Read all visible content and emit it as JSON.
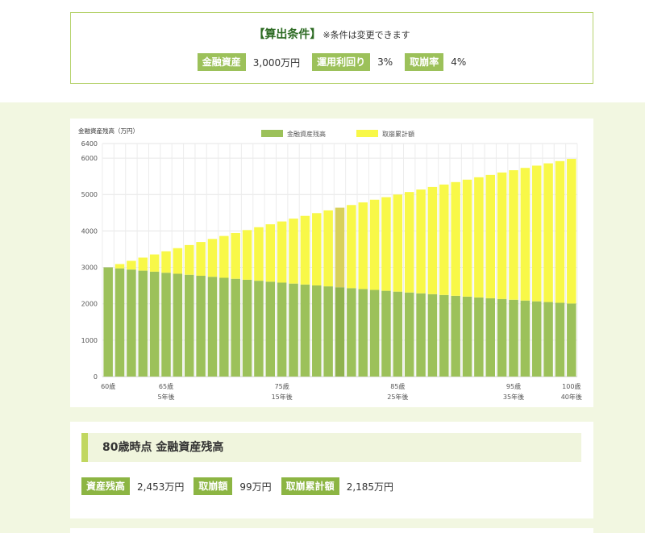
{
  "conditions": {
    "title": "【算出条件】",
    "note": "※条件は変更できます",
    "asset_label": "金融資産",
    "asset_value": "3,000万円",
    "return_label": "運用利回り",
    "return_value": "3%",
    "withdraw_label": "取崩率",
    "withdraw_value": "4%"
  },
  "chart_data": {
    "type": "bar",
    "stacked": true,
    "ylabel": "金融資産残高（万円）",
    "ylim": [
      0,
      6400
    ],
    "yticks": [
      0,
      1000,
      2000,
      3000,
      4000,
      5000,
      6000,
      6400
    ],
    "legend_position": "top-center",
    "grid": true,
    "highlight_index": 20,
    "x_tick_labels": [
      {
        "index": 0,
        "line1": "60歳",
        "line2": ""
      },
      {
        "index": 5,
        "line1": "65歳",
        "line2": "5年後"
      },
      {
        "index": 15,
        "line1": "75歳",
        "line2": "15年後"
      },
      {
        "index": 25,
        "line1": "85歳",
        "line2": "25年後"
      },
      {
        "index": 35,
        "line1": "95歳",
        "line2": "35年後"
      },
      {
        "index": 40,
        "line1": "100歳",
        "line2": "40年後"
      }
    ],
    "series": [
      {
        "name": "金融資産残高",
        "color": "#9cc15a",
        "highlight_color": "#8fb24e",
        "values": [
          3000,
          2970,
          2940,
          2910,
          2881,
          2852,
          2824,
          2796,
          2768,
          2740,
          2713,
          2686,
          2659,
          2632,
          2606,
          2580,
          2554,
          2528,
          2503,
          2478,
          2453,
          2428,
          2404,
          2380,
          2356,
          2333,
          2309,
          2286,
          2263,
          2241,
          2218,
          2196,
          2174,
          2152,
          2131,
          2109,
          2088,
          2067,
          2047,
          2026,
          2006
        ]
      },
      {
        "name": "取崩累計額",
        "color": "#f8f848",
        "highlight_color": "#d8d05a",
        "values": [
          0,
          120,
          239,
          357,
          473,
          589,
          703,
          816,
          928,
          1039,
          1148,
          1257,
          1364,
          1470,
          1576,
          1680,
          1783,
          1885,
          1986,
          2086,
          2185,
          2283,
          2380,
          2476,
          2571,
          2666,
          2759,
          2851,
          2943,
          3033,
          3123,
          3212,
          3300,
          3387,
          3473,
          3558,
          3643,
          3726,
          3809,
          3891,
          3972
        ]
      }
    ]
  },
  "result": {
    "title": "80歳時点 金融資産残高",
    "balance_label": "資産残高",
    "balance_value": "2,453万円",
    "withdraw_label": "取崩額",
    "withdraw_value": "99万円",
    "cumulative_label": "取崩累計額",
    "cumulative_value": "2,185万円"
  }
}
